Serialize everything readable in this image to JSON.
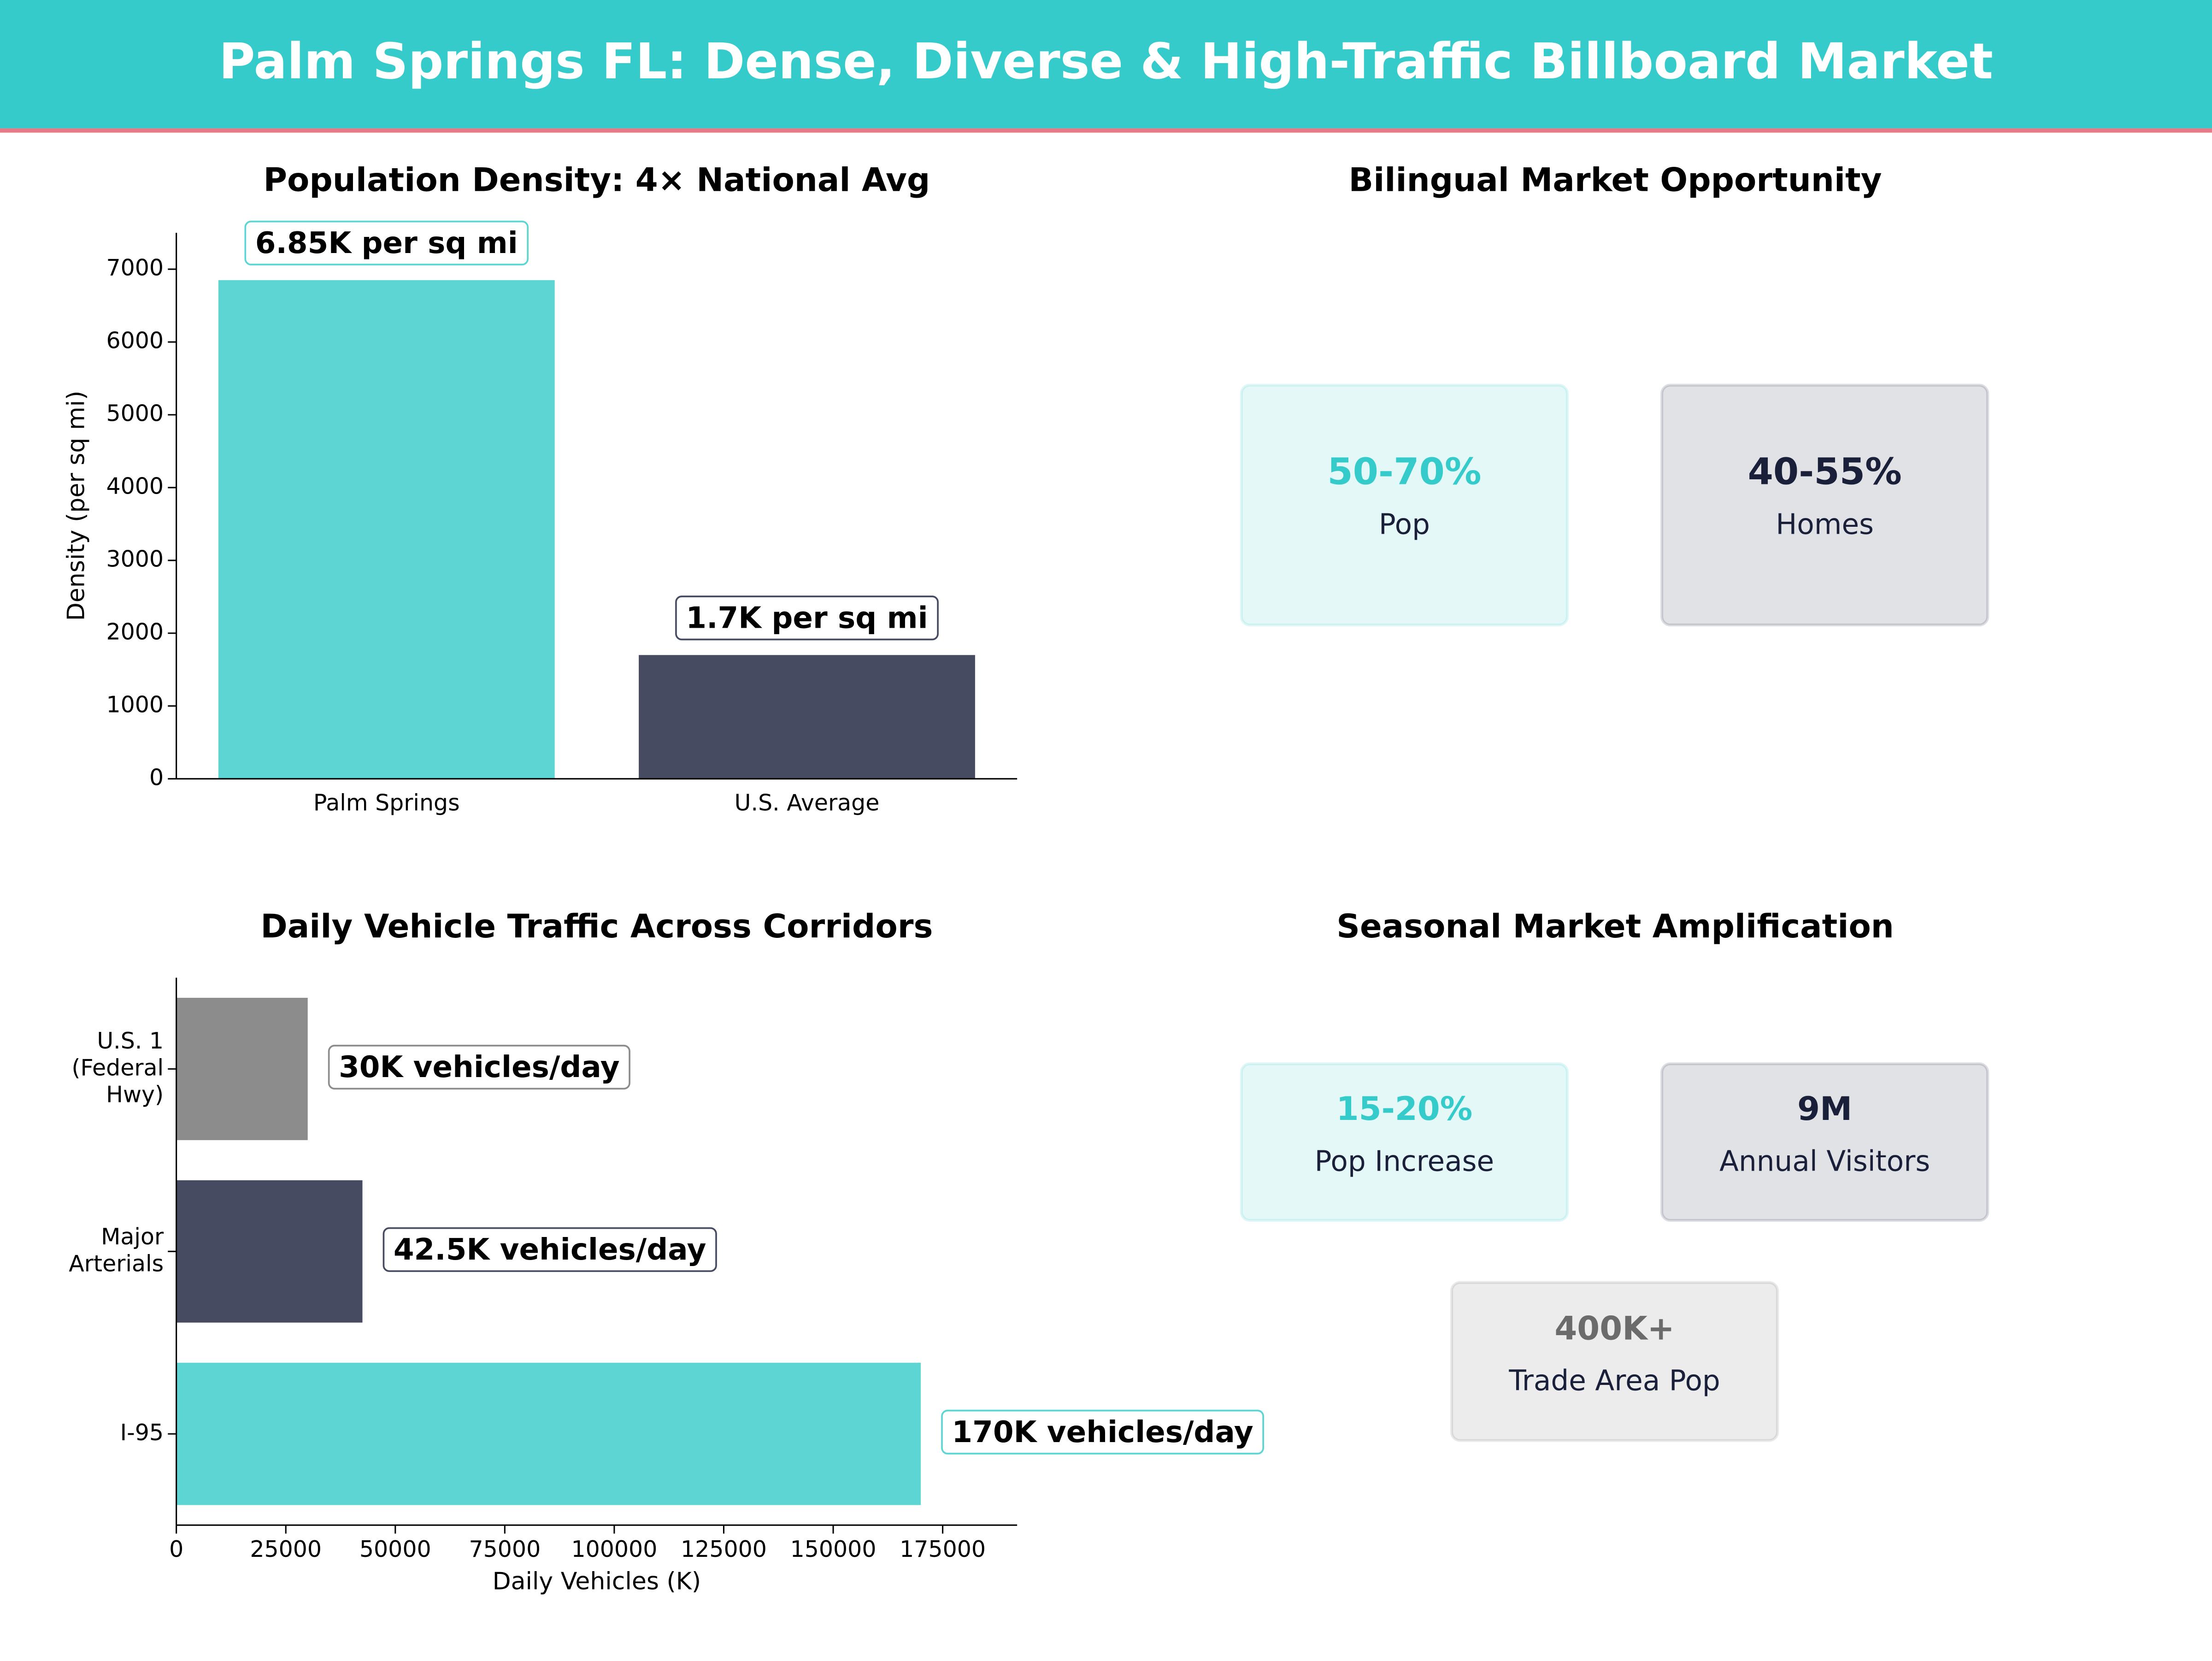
{
  "title": "Palm Springs FL: Dense, Diverse & High-Traffic Billboard Market",
  "chart_data": [
    {
      "type": "bar",
      "title": "Population Density: 4× National Avg",
      "ylabel": "Density (per sq mi)",
      "categories": [
        "Palm Springs",
        "U.S. Average"
      ],
      "values": [
        6850,
        1700
      ],
      "value_labels": [
        "6.85K per sq mi",
        "1.7K per sq mi"
      ],
      "colors": [
        "#5dd6d3",
        "#474b61"
      ],
      "ylim": [
        0,
        7500
      ],
      "yticks": [
        0,
        1000,
        2000,
        3000,
        4000,
        5000,
        6000,
        7000
      ]
    },
    {
      "type": "barh",
      "title": "Daily Vehicle Traffic Across Corridors",
      "xlabel": "Daily Vehicles (K)",
      "categories": [
        "U.S. 1\n(Federal\nHwy)",
        "Major\nArterials",
        "I-95"
      ],
      "values": [
        30000,
        42500,
        170000
      ],
      "value_labels": [
        "30K vehicles/day",
        "42.5K vehicles/day",
        "170K vehicles/day"
      ],
      "colors": [
        "#8c8c8c",
        "#474b61",
        "#5dd6d3"
      ],
      "xlim": [
        0,
        192000
      ],
      "xticks": [
        0,
        25000,
        50000,
        75000,
        100000,
        125000,
        150000,
        175000
      ]
    }
  ],
  "panels": [
    {
      "title": "Bilingual Market Opportunity",
      "cards": [
        {
          "value": "50-70%",
          "label": "Pop",
          "color": "#36cbcb"
        },
        {
          "value": "40-55%",
          "label": "Homes",
          "color": "#1a1f3a"
        }
      ]
    },
    {
      "title": "Seasonal Market Amplification",
      "cards": [
        {
          "value": "15-20%",
          "label": "Pop Increase",
          "color": "#36cbcb"
        },
        {
          "value": "9M",
          "label": "Annual Visitors",
          "color": "#1a1f3a"
        },
        {
          "value": "400K+",
          "label": "Trade Area Pop",
          "color": "#6b6b6b"
        }
      ]
    }
  ]
}
